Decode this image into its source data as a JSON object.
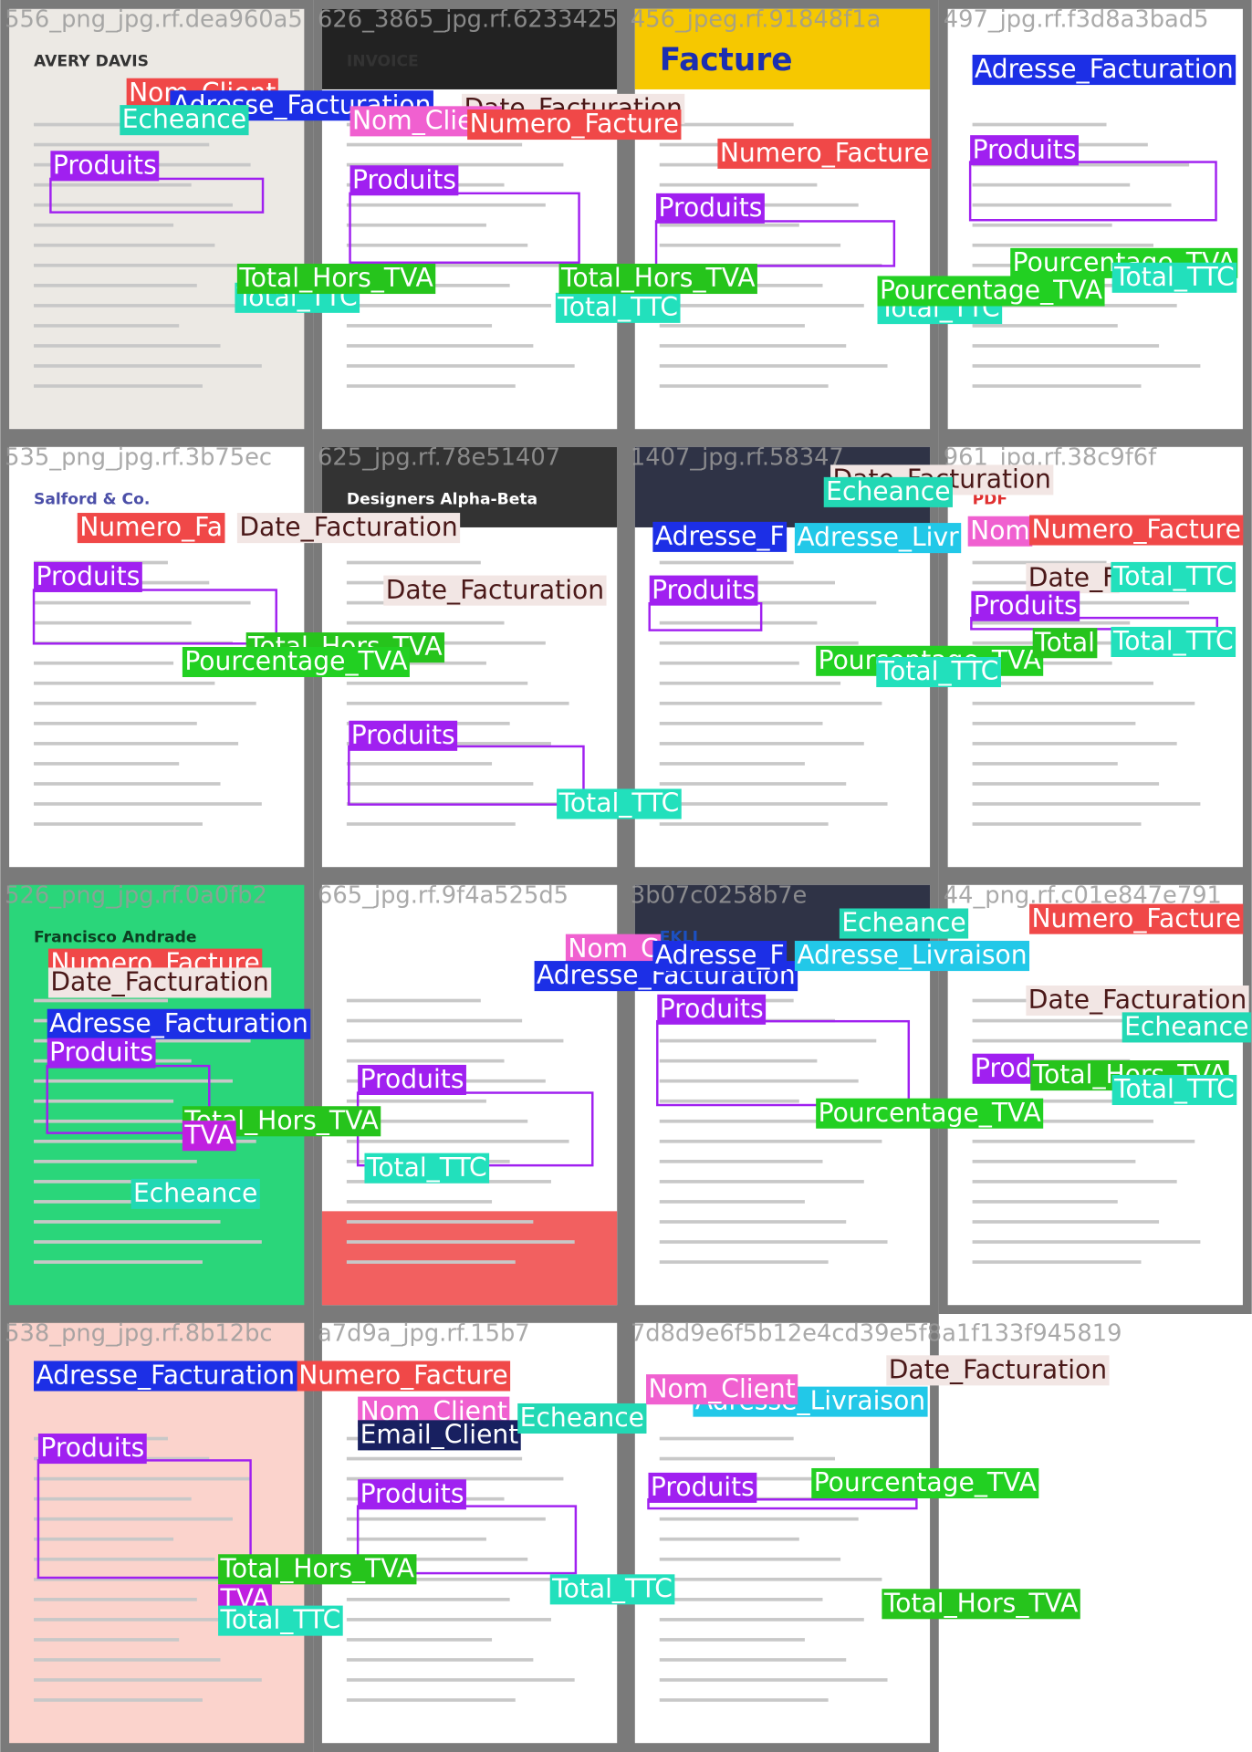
{
  "tiles": [
    {
      "file": "556_png_jpg.rf.dea960a5",
      "doc_title": "AVERY DAVIS",
      "labels": [
        {
          "text": "Nom_Client",
          "color": "#f04848"
        },
        {
          "text": "Adresse_Facturation",
          "color": "#1c2fe6"
        },
        {
          "text": "Echeance",
          "color": "#22d8b4"
        },
        {
          "text": "Produits",
          "color": "#a020f0"
        },
        {
          "text": "Total_TTC",
          "color": "#22e0bc"
        },
        {
          "text": "Total_Hors_TVA",
          "color": "#26c41c"
        }
      ]
    },
    {
      "file": "626_3865_jpg.rf.6233425",
      "doc_title": "INVOICE",
      "labels": [
        {
          "text": "Date_Facturation",
          "color": "#f2e6e4"
        },
        {
          "text": "Nom_Client",
          "color": "#f060d0"
        },
        {
          "text": "Numero_Facture",
          "color": "#f04848"
        },
        {
          "text": "Produits",
          "color": "#a020f0"
        },
        {
          "text": "Total_TTC",
          "color": "#22e0bc"
        },
        {
          "text": "Total_Hors_TVA",
          "color": "#26c41c"
        }
      ]
    },
    {
      "file": "456_jpeg.rf.91848f1a",
      "doc_title": "Facture",
      "labels": [
        {
          "text": "Numero_Facture",
          "color": "#f04848"
        },
        {
          "text": "Produits",
          "color": "#a020f0"
        },
        {
          "text": "Total_TTC",
          "color": "#22e0bc"
        },
        {
          "text": "Pourcentage_TVA",
          "color": "#22d022"
        }
      ]
    },
    {
      "file": "497_jpg.rf.f3d8a3bad5",
      "labels": [
        {
          "text": "Adresse_Facturation",
          "color": "#1c2fe6"
        },
        {
          "text": "Produits",
          "color": "#a020f0"
        },
        {
          "text": "Pourcentage_TVA",
          "color": "#22d022"
        },
        {
          "text": "Total_TTC",
          "color": "#22e0bc"
        }
      ]
    },
    {
      "file": "535_png_jpg.rf.3b75ec",
      "doc_title": "Salford & Co.",
      "labels": [
        {
          "text": "Numero_Fa",
          "color": "#f04848"
        },
        {
          "text": "Date_Facturation",
          "color": "#f2e6e4"
        },
        {
          "text": "Produits",
          "color": "#a020f0"
        },
        {
          "text": "Total_Hors_TVA",
          "color": "#26c41c"
        },
        {
          "text": "Pourcentage_TVA",
          "color": "#22d022"
        }
      ]
    },
    {
      "file": "625_jpg.rf.78e51407",
      "doc_title": "Designers Alpha-Beta",
      "labels": [
        {
          "text": "Date_Facturation",
          "color": "#f2e6e4"
        },
        {
          "text": "Produits",
          "color": "#a020f0"
        },
        {
          "text": "Total_TTC",
          "color": "#22e0bc"
        }
      ]
    },
    {
      "file": "1407_jpg.rf.58347",
      "labels": [
        {
          "text": "Date_Facturation",
          "color": "#f2e6e4"
        },
        {
          "text": "Echeance",
          "color": "#22d8b4"
        },
        {
          "text": "Adresse_F",
          "color": "#1c2fe6"
        },
        {
          "text": "Adresse_Livr",
          "color": "#22c8e8"
        },
        {
          "text": "Produits",
          "color": "#a020f0"
        },
        {
          "text": "Pourcentage_TVA",
          "color": "#22d022"
        },
        {
          "text": "Total_TTC",
          "color": "#22e0bc"
        }
      ]
    },
    {
      "file": "961_jpg.rf.38c9f6f",
      "doc_title": "PDF",
      "labels": [
        {
          "text": "Nom",
          "color": "#f060d0"
        },
        {
          "text": "Numero_Facture",
          "color": "#f04848"
        },
        {
          "text": "Date_F",
          "color": "#f2e6e4"
        },
        {
          "text": "Total_TTC",
          "color": "#22e0bc"
        },
        {
          "text": "Produits",
          "color": "#a020f0"
        },
        {
          "text": "Total",
          "color": "#26c41c"
        },
        {
          "text": "Total_TTC",
          "color": "#22e0bc"
        }
      ]
    },
    {
      "file": "526_png_jpg.rf.0a0fb2",
      "doc_title": "Francisco Andrade",
      "labels": [
        {
          "text": "Numero_Facture",
          "color": "#f04848"
        },
        {
          "text": "Date_Facturation",
          "color": "#f2e6e4"
        },
        {
          "text": "Adresse_Facturation",
          "color": "#1c2fe6"
        },
        {
          "text": "Produits",
          "color": "#a020f0"
        },
        {
          "text": "Total_Hors_TVA",
          "color": "#26c41c"
        },
        {
          "text": "TVA",
          "color": "#c020e0"
        },
        {
          "text": "Echeance",
          "color": "#22d8b4"
        }
      ]
    },
    {
      "file": "665_jpg.rf.9f4a525d5",
      "labels": [
        {
          "text": "Nom_C",
          "color": "#f060d0"
        },
        {
          "text": "Adresse_Facturation",
          "color": "#1c2fe6"
        },
        {
          "text": "Produits",
          "color": "#a020f0"
        },
        {
          "text": "Total_TTC",
          "color": "#22e0bc"
        }
      ]
    },
    {
      "file": "3b07c0258b7e",
      "doc_title": "EKLJ",
      "labels": [
        {
          "text": "Echeance",
          "color": "#22d8b4"
        },
        {
          "text": "Adresse_F",
          "color": "#1c2fe6"
        },
        {
          "text": "Adresse_Livraison",
          "color": "#22c8e8"
        },
        {
          "text": "Produits",
          "color": "#a020f0"
        },
        {
          "text": "Pourcentage_TVA",
          "color": "#22d022"
        }
      ]
    },
    {
      "file": "44_png.rf.c01e847e791",
      "labels": [
        {
          "text": "Numero_Facture",
          "color": "#f04848"
        },
        {
          "text": "Date_Facturation",
          "color": "#f2e6e4"
        },
        {
          "text": "Echeance",
          "color": "#22d8b4"
        },
        {
          "text": "Prod",
          "color": "#a020f0"
        },
        {
          "text": "Total_Hors_TVA",
          "color": "#26c41c"
        },
        {
          "text": "Total_TTC",
          "color": "#22e0bc"
        }
      ]
    },
    {
      "file": "538_png_jpg.rf.8b12bc",
      "labels": [
        {
          "text": "Numero_Facture",
          "color": "#f04848"
        },
        {
          "text": "Adresse_Facturation",
          "color": "#1c2fe6"
        },
        {
          "text": "Produits",
          "color": "#a020f0"
        },
        {
          "text": "Total_Hors_TVA",
          "color": "#26c41c"
        },
        {
          "text": "TVA",
          "color": "#c020e0"
        },
        {
          "text": "Total_TTC",
          "color": "#22e0bc"
        }
      ]
    },
    {
      "file": "a7d9a_jpg.rf.15b7",
      "labels": [
        {
          "text": "Nom_Client",
          "color": "#f060d0"
        },
        {
          "text": "Email_Client",
          "color": "#182060"
        },
        {
          "text": "Echeance",
          "color": "#22d8b4"
        },
        {
          "text": "Produits",
          "color": "#a020f0"
        },
        {
          "text": "Total_TTC",
          "color": "#22e0bc"
        }
      ]
    },
    {
      "file": "7d8d9e6f5b12e4cd39e5f8a1f133f945819",
      "labels": [
        {
          "text": "Adresse_Livraison",
          "color": "#22c8e8"
        },
        {
          "text": "Nom_Client",
          "color": "#f060d0"
        },
        {
          "text": "Date_Facturation",
          "color": "#f2e6e4"
        },
        {
          "text": "Produits",
          "color": "#a020f0"
        },
        {
          "text": "Pourcentage_TVA",
          "color": "#22d022"
        },
        {
          "text": "Total_Hors_TVA",
          "color": "#26c41c"
        }
      ]
    }
  ]
}
